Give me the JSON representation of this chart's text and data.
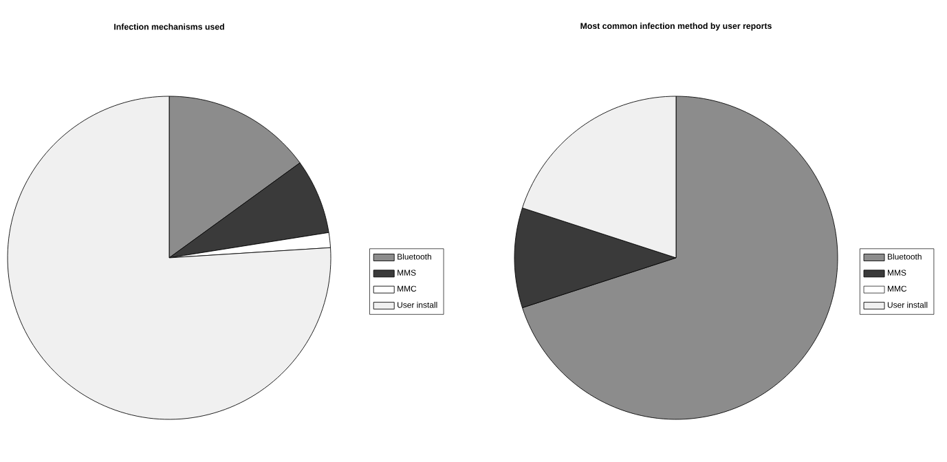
{
  "chart_data": [
    {
      "type": "pie",
      "title": "Infection mechanisms used",
      "categories": [
        "Bluetooth",
        "MMS",
        "MMC",
        "User install"
      ],
      "values": [
        15,
        7.5,
        1.5,
        76
      ],
      "colors": [
        "#8c8c8c",
        "#3a3a3a",
        "#ffffff",
        "#f0f0f0"
      ],
      "legend": "right"
    },
    {
      "type": "pie",
      "title": "Most common infection method by user reports",
      "categories": [
        "Bluetooth",
        "MMS",
        "MMC",
        "User install"
      ],
      "values": [
        70,
        10,
        0,
        20
      ],
      "colors": [
        "#8c8c8c",
        "#3a3a3a",
        "#ffffff",
        "#f0f0f0"
      ],
      "legend": "right"
    }
  ]
}
